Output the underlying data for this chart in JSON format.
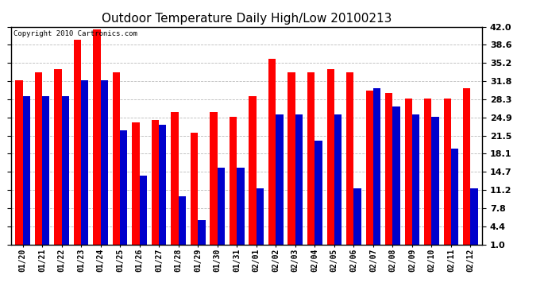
{
  "title": "Outdoor Temperature Daily High/Low 20100213",
  "copyright": "Copyright 2010 Cartronics.com",
  "dates": [
    "01/20",
    "01/21",
    "01/22",
    "01/23",
    "01/24",
    "01/25",
    "01/26",
    "01/27",
    "01/28",
    "01/29",
    "01/30",
    "01/31",
    "02/01",
    "02/02",
    "02/03",
    "02/04",
    "02/05",
    "02/06",
    "02/07",
    "02/08",
    "02/09",
    "02/10",
    "02/11",
    "02/12"
  ],
  "highs": [
    32.0,
    33.5,
    34.0,
    39.5,
    41.5,
    33.5,
    24.0,
    24.5,
    26.0,
    22.0,
    26.0,
    25.0,
    29.0,
    36.0,
    33.5,
    33.5,
    34.0,
    33.5,
    30.0,
    29.5,
    28.5,
    28.5,
    28.5,
    30.5
  ],
  "lows": [
    29.0,
    29.0,
    29.0,
    32.0,
    32.0,
    22.5,
    14.0,
    23.5,
    10.0,
    5.5,
    15.5,
    15.5,
    11.5,
    25.5,
    25.5,
    20.5,
    25.5,
    11.5,
    30.5,
    27.0,
    25.5,
    25.0,
    19.0,
    11.5
  ],
  "high_color": "#ff0000",
  "low_color": "#0000cc",
  "bg_color": "#ffffff",
  "yticks": [
    1.0,
    4.4,
    7.8,
    11.2,
    14.7,
    18.1,
    21.5,
    24.9,
    28.3,
    31.8,
    35.2,
    38.6,
    42.0
  ],
  "ymin": 1.0,
  "ymax": 42.0,
  "bar_width": 0.38,
  "grid_color": "#bbbbbb",
  "title_fontsize": 11,
  "tick_fontsize": 7,
  "copyright_fontsize": 6.5
}
